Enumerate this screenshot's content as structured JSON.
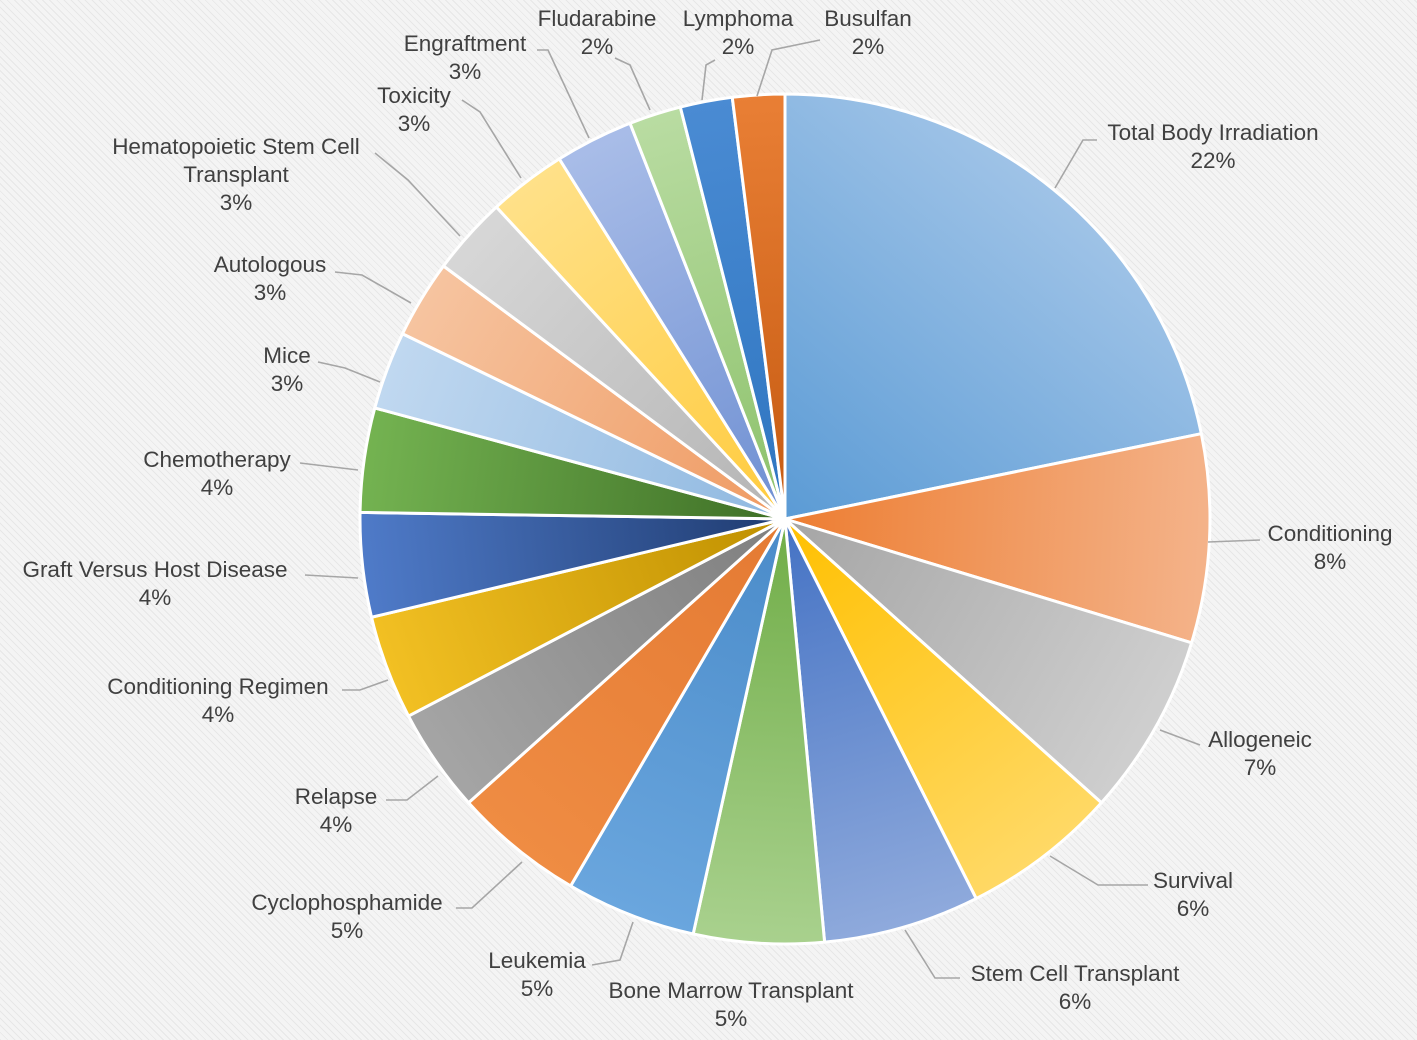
{
  "chart_data": {
    "type": "pie",
    "title": "",
    "start_angle_deg": 0,
    "direction": "clockwise",
    "legend": "none",
    "slices": [
      {
        "name": "Total Body Irradiation",
        "value": 22,
        "label": "22%",
        "color": "#5b9bd5",
        "colorLight": "#9fc3e7"
      },
      {
        "name": "Conditioning",
        "value": 8,
        "label": "8%",
        "color": "#ed7d31",
        "colorLight": "#f4b38a"
      },
      {
        "name": "Allogeneic",
        "value": 7,
        "label": "7%",
        "color": "#a5a5a5",
        "colorLight": "#cfcfcf"
      },
      {
        "name": "Survival",
        "value": 6,
        "label": "6%",
        "color": "#ffc000",
        "colorLight": "#ffd966"
      },
      {
        "name": "Stem Cell Transplant",
        "value": 6,
        "label": "6%",
        "color": "#4472c4",
        "colorLight": "#8faadc"
      },
      {
        "name": "Bone Marrow Transplant",
        "value": 5,
        "label": "5%",
        "color": "#70ad47",
        "colorLight": "#a9d18e"
      },
      {
        "name": "Leukemia",
        "value": 5,
        "label": "5%",
        "color": "#4a8bc9",
        "colorLight": "#6aa6de"
      },
      {
        "name": "Cyclophosphamide",
        "value": 5,
        "label": "5%",
        "color": "#e47a33",
        "colorLight": "#ef8c43"
      },
      {
        "name": "Relapse",
        "value": 4,
        "label": "4%",
        "color": "#7f7f7f",
        "colorLight": "#a5a5a5"
      },
      {
        "name": "Conditioning Regimen",
        "value": 4,
        "label": "4%",
        "color": "#bf9000",
        "colorLight": "#f2c023"
      },
      {
        "name": "Graft Versus Host Disease",
        "value": 4,
        "label": "4%",
        "color": "#1f3b70",
        "colorLight": "#4f7bc9"
      },
      {
        "name": "Chemotherapy",
        "value": 4,
        "label": "4%",
        "color": "#3e6f26",
        "colorLight": "#74b351"
      },
      {
        "name": "Mice",
        "value": 3,
        "label": "3%",
        "color": "#8fb8e0",
        "colorLight": "#c0d8f0"
      },
      {
        "name": "Autologous",
        "value": 3,
        "label": "3%",
        "color": "#ef9a62",
        "colorLight": "#f6c4a0"
      },
      {
        "name": "Hematopoietic Stem Cell Transplant",
        "value": 3,
        "label": "3%",
        "color": "#b4b4b4",
        "colorLight": "#d7d7d7"
      },
      {
        "name": "Toxicity",
        "value": 3,
        "label": "3%",
        "color": "#ffcb3d",
        "colorLight": "#ffe189"
      },
      {
        "name": "Engraftment",
        "value": 3,
        "label": "3%",
        "color": "#6e8fd2",
        "colorLight": "#a9bde8"
      },
      {
        "name": "Fludarabine",
        "value": 2,
        "label": "2%",
        "color": "#8cc16a",
        "colorLight": "#b9dca2"
      },
      {
        "name": "Lymphoma",
        "value": 2,
        "label": "2%",
        "color": "#2e75c0",
        "colorLight": "#4a8bd3"
      },
      {
        "name": "Busulfan",
        "value": 2,
        "label": "2%",
        "color": "#c55a11",
        "colorLight": "#e97f35"
      }
    ]
  }
}
